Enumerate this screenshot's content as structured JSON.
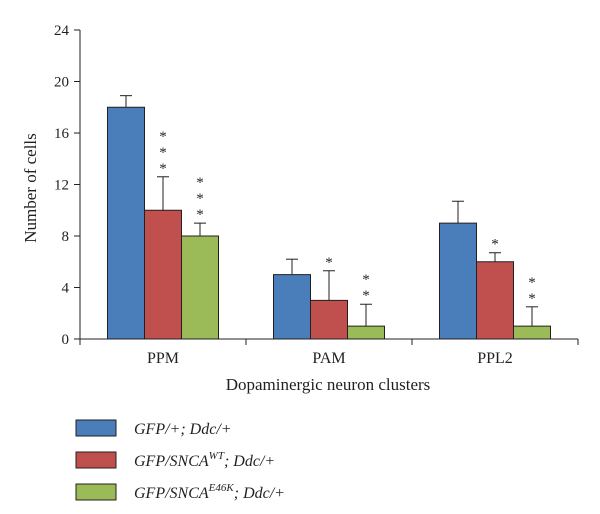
{
  "chart_data": {
    "type": "bar",
    "xlabel": "Dopaminergic neuron clusters",
    "ylabel": "Number of cells",
    "ylim": [
      0,
      24
    ],
    "yticks": [
      0,
      4,
      8,
      12,
      16,
      20,
      24
    ],
    "grid": false,
    "legend_position": "bottom-left",
    "categories": [
      "PPM",
      "PAM",
      "PPL2"
    ],
    "series": [
      {
        "legend": {
          "main": "GFP/+; Ddc/+",
          "sup": "",
          "tail": ""
        },
        "color": "#4a7ebb",
        "values": [
          18,
          5,
          9
        ],
        "errors": [
          0.9,
          1.2,
          1.7
        ],
        "significance": [
          "",
          "",
          ""
        ]
      },
      {
        "legend": {
          "main": "GFP/SNCA",
          "sup": "WT",
          "tail": "; Ddc/+"
        },
        "color": "#c0504d",
        "values": [
          10,
          3,
          6
        ],
        "errors": [
          2.6,
          2.3,
          0.7
        ],
        "significance": [
          "***",
          "*",
          "*"
        ]
      },
      {
        "legend": {
          "main": "GFP/SNCA",
          "sup": "E46K",
          "tail": "; Ddc/+"
        },
        "color": "#9bbb59",
        "values": [
          8,
          1,
          1
        ],
        "errors": [
          1.0,
          1.7,
          1.5
        ],
        "significance": [
          "***",
          "**",
          "**"
        ]
      }
    ]
  }
}
